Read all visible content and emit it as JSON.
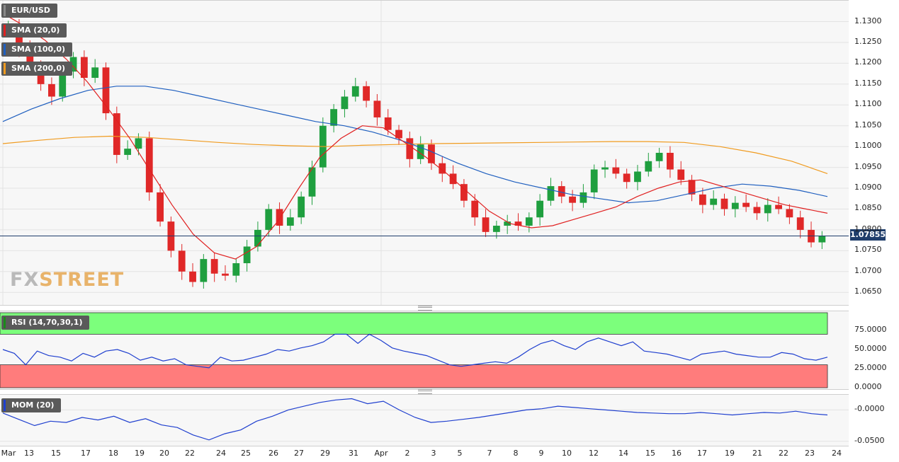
{
  "symbol": "EUR/USD",
  "indicators": {
    "sma20": {
      "label": "SMA (20,0)",
      "color": "#e02020"
    },
    "sma100": {
      "label": "SMA (100,0)",
      "color": "#1f5fbf"
    },
    "sma200": {
      "label": "SMA (200,0)",
      "color": "#f09b1f"
    },
    "rsi": {
      "label": "RSI (14,70,30,1)",
      "color": "#1f3fcf"
    },
    "mom": {
      "label": "MOM (20)",
      "color": "#1f3fcf"
    }
  },
  "last_price": "1.07855",
  "logo": {
    "part1": "FX",
    "part2": "STREET"
  },
  "colors": {
    "up": "#1f9f3f",
    "down": "#e02828",
    "last_line": "#1f3d6b",
    "overbought_zone": "#7cff7c",
    "oversold_zone": "#ff7c7c"
  },
  "chart_data": [
    {
      "type": "candlestick",
      "title": "EUR/USD",
      "y_ticks": [
        "1.1300",
        "1.1250",
        "1.1200",
        "1.1150",
        "1.1100",
        "1.1050",
        "1.1000",
        "1.0950",
        "1.0900",
        "1.0850",
        "1.0800",
        "1.0750",
        "1.0700",
        "1.0650"
      ],
      "ylim": [
        1.063,
        1.134
      ],
      "x_ticks": [
        "Mar",
        "13",
        "15",
        "17",
        "18",
        "19",
        "20",
        "22",
        "24",
        "25",
        "26",
        "27",
        "29",
        "31",
        "Apr",
        "2",
        "3",
        "5",
        "7",
        "8",
        "9",
        "10",
        "12",
        "14",
        "15",
        "16",
        "17",
        "19",
        "21",
        "22",
        "23",
        "24"
      ],
      "series": [
        {
          "name": "EUR/USD",
          "close": [
            1.129,
            1.1235,
            1.1195,
            1.115,
            1.112,
            1.118,
            1.1215,
            1.1165,
            1.119,
            1.108,
            1.098,
            1.0995,
            1.102,
            1.089,
            1.082,
            1.075,
            1.07,
            1.0675,
            1.073,
            1.0695,
            1.069,
            1.072,
            1.076,
            1.08,
            1.085,
            1.081,
            1.083,
            1.088,
            1.095,
            1.105,
            1.109,
            1.112,
            1.1145,
            1.111,
            1.107,
            1.104,
            1.102,
            1.097,
            1.1005,
            1.096,
            1.0935,
            1.091,
            1.087,
            1.083,
            1.0795,
            1.081,
            1.082,
            1.081,
            1.083,
            1.087,
            1.0905,
            1.088,
            1.0865,
            1.089,
            1.0945,
            1.095,
            1.0935,
            1.0915,
            1.094,
            1.0965,
            1.0985,
            1.0945,
            1.092,
            1.0885,
            1.086,
            1.0875,
            1.085,
            1.0865,
            1.0855,
            1.084,
            1.086,
            1.085,
            1.083,
            1.08,
            1.077,
            1.0785
          ]
        },
        {
          "name": "SMA 20",
          "values": [
            1.132,
            1.129,
            1.1255,
            1.121,
            1.1155,
            1.109,
            1.102,
            1.094,
            1.086,
            1.079,
            1.0745,
            1.073,
            1.076,
            1.082,
            1.09,
            1.0975,
            1.102,
            1.105,
            1.1045,
            1.101,
            1.0975,
            1.0935,
            1.089,
            1.0845,
            1.0815,
            1.0805,
            1.081,
            1.0825,
            1.084,
            1.0855,
            1.088,
            1.09,
            1.0915,
            1.092,
            1.0905,
            1.089,
            1.0875,
            1.086,
            1.085,
            1.084
          ]
        },
        {
          "name": "SMA 100",
          "values": [
            1.106,
            1.109,
            1.1115,
            1.1135,
            1.1145,
            1.1145,
            1.1135,
            1.112,
            1.1105,
            1.109,
            1.1075,
            1.106,
            1.105,
            1.1035,
            1.1015,
            1.099,
            1.096,
            1.0935,
            1.0915,
            1.09,
            1.0885,
            1.0875,
            1.0865,
            1.087,
            1.0885,
            1.09,
            1.091,
            1.0905,
            1.0895,
            1.088
          ]
        },
        {
          "name": "SMA 200",
          "values": [
            1.1007,
            1.1015,
            1.1022,
            1.1025,
            1.1022,
            1.1016,
            1.101,
            1.1005,
            1.1002,
            1.1,
            1.1003,
            1.1005,
            1.1007,
            1.1008,
            1.1009,
            1.101,
            1.1011,
            1.1012,
            1.1012,
            1.101,
            1.1,
            1.0985,
            1.0965,
            1.0935
          ]
        }
      ]
    },
    {
      "type": "line",
      "title": "RSI (14,70,30,1)",
      "y_ticks": [
        "75.0000",
        "50.0000",
        "25.0000",
        "0.0000"
      ],
      "ylim": [
        0,
        100
      ],
      "series": [
        {
          "name": "RSI",
          "values": [
            50,
            45,
            30,
            48,
            42,
            40,
            35,
            45,
            40,
            48,
            50,
            45,
            36,
            40,
            35,
            38,
            30,
            28,
            26,
            40,
            35,
            36,
            40,
            44,
            50,
            48,
            52,
            55,
            60,
            70,
            70,
            58,
            70,
            62,
            52,
            48,
            45,
            42,
            36,
            30,
            28,
            30,
            32,
            34,
            32,
            40,
            50,
            58,
            62,
            55,
            50,
            60,
            65,
            60,
            55,
            60,
            48,
            46,
            44,
            40,
            36,
            44,
            46,
            48,
            44,
            42,
            40,
            40,
            46,
            44,
            38,
            36,
            40
          ]
        }
      ]
    },
    {
      "type": "line",
      "title": "MOM (20)",
      "y_ticks": [
        "-0.0000",
        "-0.0500"
      ],
      "ylim": [
        -0.055,
        0.022
      ],
      "series": [
        {
          "name": "MOM",
          "values": [
            -0.005,
            -0.015,
            -0.025,
            -0.018,
            -0.02,
            -0.012,
            -0.016,
            -0.01,
            -0.02,
            -0.014,
            -0.024,
            -0.028,
            -0.04,
            -0.048,
            -0.038,
            -0.032,
            -0.018,
            -0.01,
            0.0,
            0.006,
            0.012,
            0.016,
            0.018,
            0.01,
            0.014,
            0.0,
            -0.012,
            -0.02,
            -0.018,
            -0.015,
            -0.012,
            -0.008,
            -0.004,
            0.0,
            0.002,
            0.006,
            0.004,
            0.002,
            0.0,
            -0.002,
            -0.004,
            -0.005,
            -0.006,
            -0.006,
            -0.004,
            -0.006,
            -0.008,
            -0.006,
            -0.004,
            -0.005,
            -0.002,
            -0.006,
            -0.008
          ]
        }
      ]
    }
  ]
}
